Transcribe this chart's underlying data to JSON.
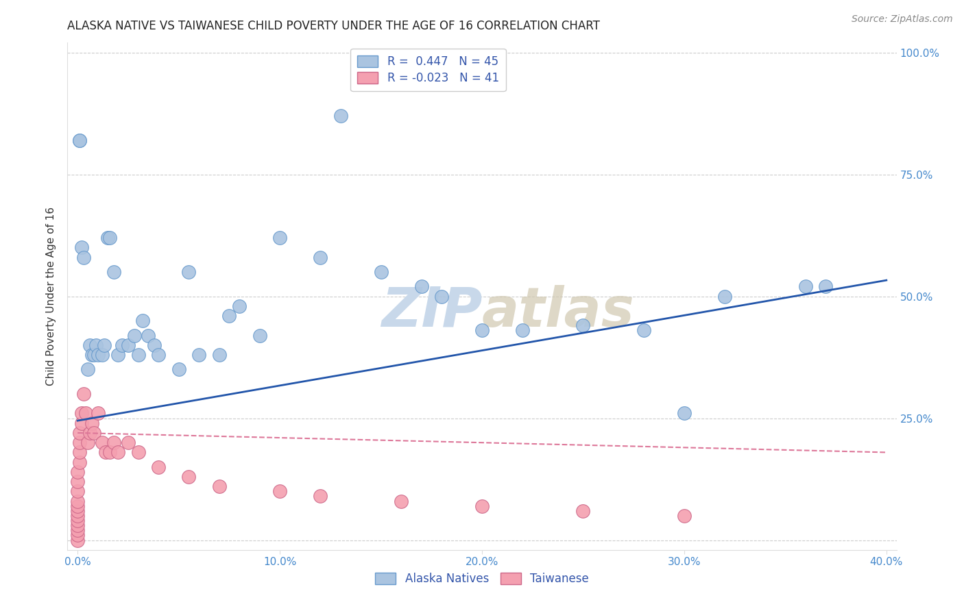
{
  "title": "ALASKA NATIVE VS TAIWANESE CHILD POVERTY UNDER THE AGE OF 16 CORRELATION CHART",
  "source": "Source: ZipAtlas.com",
  "ylabel_label": "Child Poverty Under the Age of 16",
  "xlim": [
    -0.005,
    0.405
  ],
  "ylim": [
    -0.02,
    1.02
  ],
  "xticks": [
    0.0,
    0.1,
    0.2,
    0.3,
    0.4
  ],
  "xtick_labels": [
    "0.0%",
    "10.0%",
    "20.0%",
    "30.0%",
    "40.0%"
  ],
  "yticks": [
    0.0,
    0.25,
    0.5,
    0.75,
    1.0
  ],
  "ytick_labels": [
    "",
    "25.0%",
    "50.0%",
    "75.0%",
    "100.0%"
  ],
  "background_color": "#ffffff",
  "grid_color": "#cccccc",
  "alaska_color": "#aac4e0",
  "alaska_edge_color": "#6699cc",
  "taiwanese_color": "#f4a0b0",
  "taiwanese_edge_color": "#cc6688",
  "blue_line_color": "#2255aa",
  "pink_line_color": "#dd7799",
  "watermark_color": "#c8d8ea",
  "r_alaska": 0.447,
  "n_alaska": 45,
  "r_taiwanese": -0.023,
  "n_taiwanese": 41,
  "alaska_x": [
    0.001,
    0.001,
    0.002,
    0.003,
    0.005,
    0.006,
    0.007,
    0.008,
    0.009,
    0.01,
    0.012,
    0.013,
    0.015,
    0.016,
    0.018,
    0.02,
    0.022,
    0.025,
    0.028,
    0.03,
    0.032,
    0.035,
    0.038,
    0.04,
    0.05,
    0.055,
    0.06,
    0.07,
    0.075,
    0.08,
    0.09,
    0.1,
    0.12,
    0.13,
    0.15,
    0.17,
    0.18,
    0.2,
    0.22,
    0.25,
    0.28,
    0.3,
    0.32,
    0.36,
    0.37
  ],
  "alaska_y": [
    0.82,
    0.82,
    0.6,
    0.58,
    0.35,
    0.4,
    0.38,
    0.38,
    0.4,
    0.38,
    0.38,
    0.4,
    0.62,
    0.62,
    0.55,
    0.38,
    0.4,
    0.4,
    0.42,
    0.38,
    0.45,
    0.42,
    0.4,
    0.38,
    0.35,
    0.55,
    0.38,
    0.38,
    0.46,
    0.48,
    0.42,
    0.62,
    0.58,
    0.87,
    0.55,
    0.52,
    0.5,
    0.43,
    0.43,
    0.44,
    0.43,
    0.26,
    0.5,
    0.52,
    0.52
  ],
  "taiwanese_x": [
    0.0,
    0.0,
    0.0,
    0.0,
    0.0,
    0.0,
    0.0,
    0.0,
    0.0,
    0.0,
    0.0,
    0.0,
    0.001,
    0.001,
    0.001,
    0.001,
    0.002,
    0.002,
    0.003,
    0.004,
    0.005,
    0.006,
    0.007,
    0.008,
    0.01,
    0.012,
    0.014,
    0.016,
    0.018,
    0.02,
    0.025,
    0.03,
    0.04,
    0.055,
    0.07,
    0.1,
    0.12,
    0.16,
    0.2,
    0.25,
    0.3
  ],
  "taiwanese_y": [
    0.0,
    0.01,
    0.02,
    0.03,
    0.04,
    0.05,
    0.06,
    0.07,
    0.08,
    0.1,
    0.12,
    0.14,
    0.16,
    0.18,
    0.2,
    0.22,
    0.24,
    0.26,
    0.3,
    0.26,
    0.2,
    0.22,
    0.24,
    0.22,
    0.26,
    0.2,
    0.18,
    0.18,
    0.2,
    0.18,
    0.2,
    0.18,
    0.15,
    0.13,
    0.11,
    0.1,
    0.09,
    0.08,
    0.07,
    0.06,
    0.05
  ],
  "legend_alaska_label": "Alaska Natives",
  "legend_taiwanese_label": "Taiwanese",
  "axis_tick_color": "#4488cc",
  "right_tick_color": "#4488cc",
  "title_fontsize": 12,
  "axis_label_fontsize": 11,
  "tick_fontsize": 11,
  "legend_fontsize": 12,
  "source_fontsize": 10,
  "blue_line_intercept": 0.245,
  "blue_line_slope": 0.72,
  "pink_line_intercept": 0.22,
  "pink_line_slope": -0.1
}
